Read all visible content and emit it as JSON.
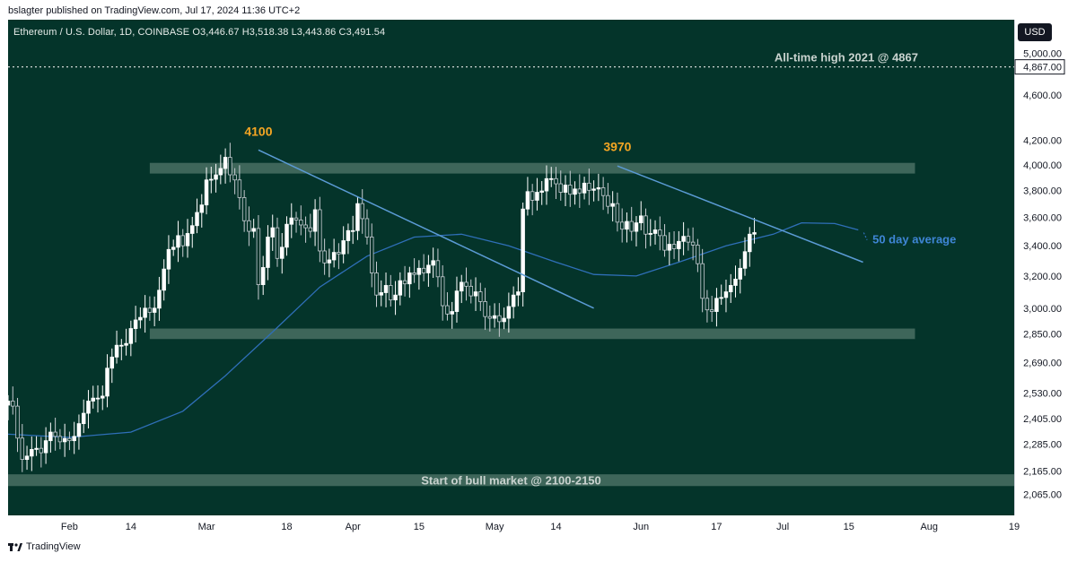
{
  "publisher_line": "bslagter published on TradingView.com, Jul 17, 2024 11:36 UTC+2",
  "legend": "Ethereum / U.S. Dollar, 1D, COINBASE  O3,446.67  H3,518.38  L3,443.86  C3,491.54",
  "currency_button": "USD",
  "footer_brand": "TradingView",
  "colors": {
    "background": "#04342a",
    "zone": "#6f8f82",
    "trend": "#5b9bd5",
    "ma": "#2f6fb8",
    "orange": "#f5a623",
    "candle_up": "#ffffff",
    "candle_down": "#c7cbd1"
  },
  "chart_data": {
    "type": "candlestick",
    "title": "",
    "x_ticks": [
      {
        "label": "Feb",
        "date": "2024-02-01"
      },
      {
        "label": "14",
        "date": "2024-02-14"
      },
      {
        "label": "Mar",
        "date": "2024-03-01"
      },
      {
        "label": "18",
        "date": "2024-03-18"
      },
      {
        "label": "Apr",
        "date": "2024-04-01"
      },
      {
        "label": "15",
        "date": "2024-04-15"
      },
      {
        "label": "May",
        "date": "2024-05-01"
      },
      {
        "label": "14",
        "date": "2024-05-14"
      },
      {
        "label": "Jun",
        "date": "2024-06-01"
      },
      {
        "label": "17",
        "date": "2024-06-17"
      },
      {
        "label": "Jul",
        "date": "2024-07-01"
      },
      {
        "label": "15",
        "date": "2024-07-15"
      },
      {
        "label": "Aug",
        "date": "2024-08-01"
      },
      {
        "label": "19",
        "date": "2024-08-19"
      }
    ],
    "x_range": [
      "2024-01-19",
      "2024-08-19"
    ],
    "y_scale": "log",
    "y_range": [
      1980,
      5350
    ],
    "y_ticks": [
      {
        "value": 5000,
        "label": "5,000.00"
      },
      {
        "value": 4600,
        "label": "4,600.00"
      },
      {
        "value": 4200,
        "label": "4,200.00"
      },
      {
        "value": 4000,
        "label": "4,000.00"
      },
      {
        "value": 3800,
        "label": "3,800.00"
      },
      {
        "value": 3600,
        "label": "3,600.00"
      },
      {
        "value": 3400,
        "label": "3,400.00"
      },
      {
        "value": 3200,
        "label": "3,200.00"
      },
      {
        "value": 3000,
        "label": "3,000.00"
      },
      {
        "value": 2850,
        "label": "2,850.00"
      },
      {
        "value": 2690,
        "label": "2,690.00"
      },
      {
        "value": 2530,
        "label": "2,530.00"
      },
      {
        "value": 2405,
        "label": "2,405.00"
      },
      {
        "value": 2285,
        "label": "2,285.00"
      },
      {
        "value": 2165,
        "label": "2,165.00"
      },
      {
        "value": 2065,
        "label": "2,065.00"
      }
    ],
    "ath_line": {
      "value": 4867,
      "label": "All-time high 2021 @ 4867",
      "price_tag": "4,867.00"
    },
    "zones": [
      {
        "name": "resistance",
        "from": "2024-02-18",
        "to": "2024-07-29",
        "low": 3930,
        "high": 4015,
        "label": ""
      },
      {
        "name": "support",
        "from": "2024-02-18",
        "to": "2024-07-29",
        "low": 2820,
        "high": 2880,
        "label": ""
      },
      {
        "name": "bull-start",
        "from": "2024-01-19",
        "to": "2024-08-19",
        "low": 2100,
        "high": 2150,
        "label": "Start of bull market @ 2100-2150"
      }
    ],
    "trendlines": [
      {
        "from": {
          "date": "2024-03-12",
          "value": 4120
        },
        "to": {
          "date": "2024-05-22",
          "value": 3000
        }
      },
      {
        "from": {
          "date": "2024-05-27",
          "value": 3990
        },
        "to": {
          "date": "2024-07-18",
          "value": 3290
        }
      }
    ],
    "peak_labels": [
      {
        "date": "2024-03-12",
        "value": 4240,
        "label": "4100"
      },
      {
        "date": "2024-05-27",
        "value": 4110,
        "label": "3970"
      }
    ],
    "ma_label": {
      "date": "2024-07-20",
      "value": 3440,
      "label": "50 day average"
    },
    "ma_50": [
      {
        "date": "2024-01-19",
        "value": 2330
      },
      {
        "date": "2024-02-01",
        "value": 2315
      },
      {
        "date": "2024-02-14",
        "value": 2340
      },
      {
        "date": "2024-02-25",
        "value": 2440
      },
      {
        "date": "2024-03-05",
        "value": 2620
      },
      {
        "date": "2024-03-15",
        "value": 2860
      },
      {
        "date": "2024-03-25",
        "value": 3130
      },
      {
        "date": "2024-04-04",
        "value": 3330
      },
      {
        "date": "2024-04-14",
        "value": 3460
      },
      {
        "date": "2024-04-24",
        "value": 3480
      },
      {
        "date": "2024-05-04",
        "value": 3400
      },
      {
        "date": "2024-05-14",
        "value": 3290
      },
      {
        "date": "2024-05-22",
        "value": 3210
      },
      {
        "date": "2024-05-31",
        "value": 3200
      },
      {
        "date": "2024-06-09",
        "value": 3290
      },
      {
        "date": "2024-06-19",
        "value": 3400
      },
      {
        "date": "2024-06-29",
        "value": 3480
      },
      {
        "date": "2024-07-05",
        "value": 3560
      },
      {
        "date": "2024-07-12",
        "value": 3555
      },
      {
        "date": "2024-07-17",
        "value": 3510
      }
    ],
    "candles_close": [
      2490,
      2465,
      2312,
      2215,
      2230,
      2260,
      2265,
      2245,
      2300,
      2340,
      2320,
      2295,
      2310,
      2300,
      2320,
      2380,
      2430,
      2490,
      2505,
      2505,
      2515,
      2660,
      2720,
      2785,
      2785,
      2795,
      2880,
      2930,
      2945,
      3000,
      2975,
      3000,
      3110,
      3245,
      3375,
      3390,
      3470,
      3400,
      3485,
      3540,
      3635,
      3690,
      3880,
      3885,
      3920,
      3970,
      4060,
      3920,
      3880,
      3745,
      3575,
      3500,
      3520,
      3145,
      3255,
      3460,
      3525,
      3315,
      3390,
      3550,
      3595,
      3580,
      3545,
      3525,
      3500,
      3655,
      3365,
      3285,
      3305,
      3355,
      3345,
      3435,
      3505,
      3505,
      3700,
      3590,
      3460,
      3220,
      3080,
      3095,
      3140,
      3050,
      3080,
      3170,
      3150,
      3220,
      3210,
      3250,
      3220,
      3270,
      3300,
      3195,
      3015,
      2965,
      2980,
      3105,
      3160,
      3135,
      3075,
      3100,
      3040,
      2950,
      2940,
      2955,
      2920,
      2940,
      3010,
      3080,
      3100,
      3660,
      3790,
      3725,
      3785,
      3795,
      3890,
      3890,
      3850,
      3785,
      3840,
      3770,
      3810,
      3780,
      3855,
      3800,
      3810,
      3820,
      3760,
      3680,
      3700,
      3565,
      3515,
      3570,
      3500,
      3560,
      3610,
      3480,
      3485,
      3510,
      3470,
      3370,
      3410,
      3380,
      3430,
      3465,
      3425,
      3405,
      3280,
      3060,
      2990,
      2980,
      3060,
      3065,
      3100,
      3140,
      3180,
      3250,
      3360,
      3480,
      3491
    ],
    "candles_start": "2024-01-19"
  }
}
